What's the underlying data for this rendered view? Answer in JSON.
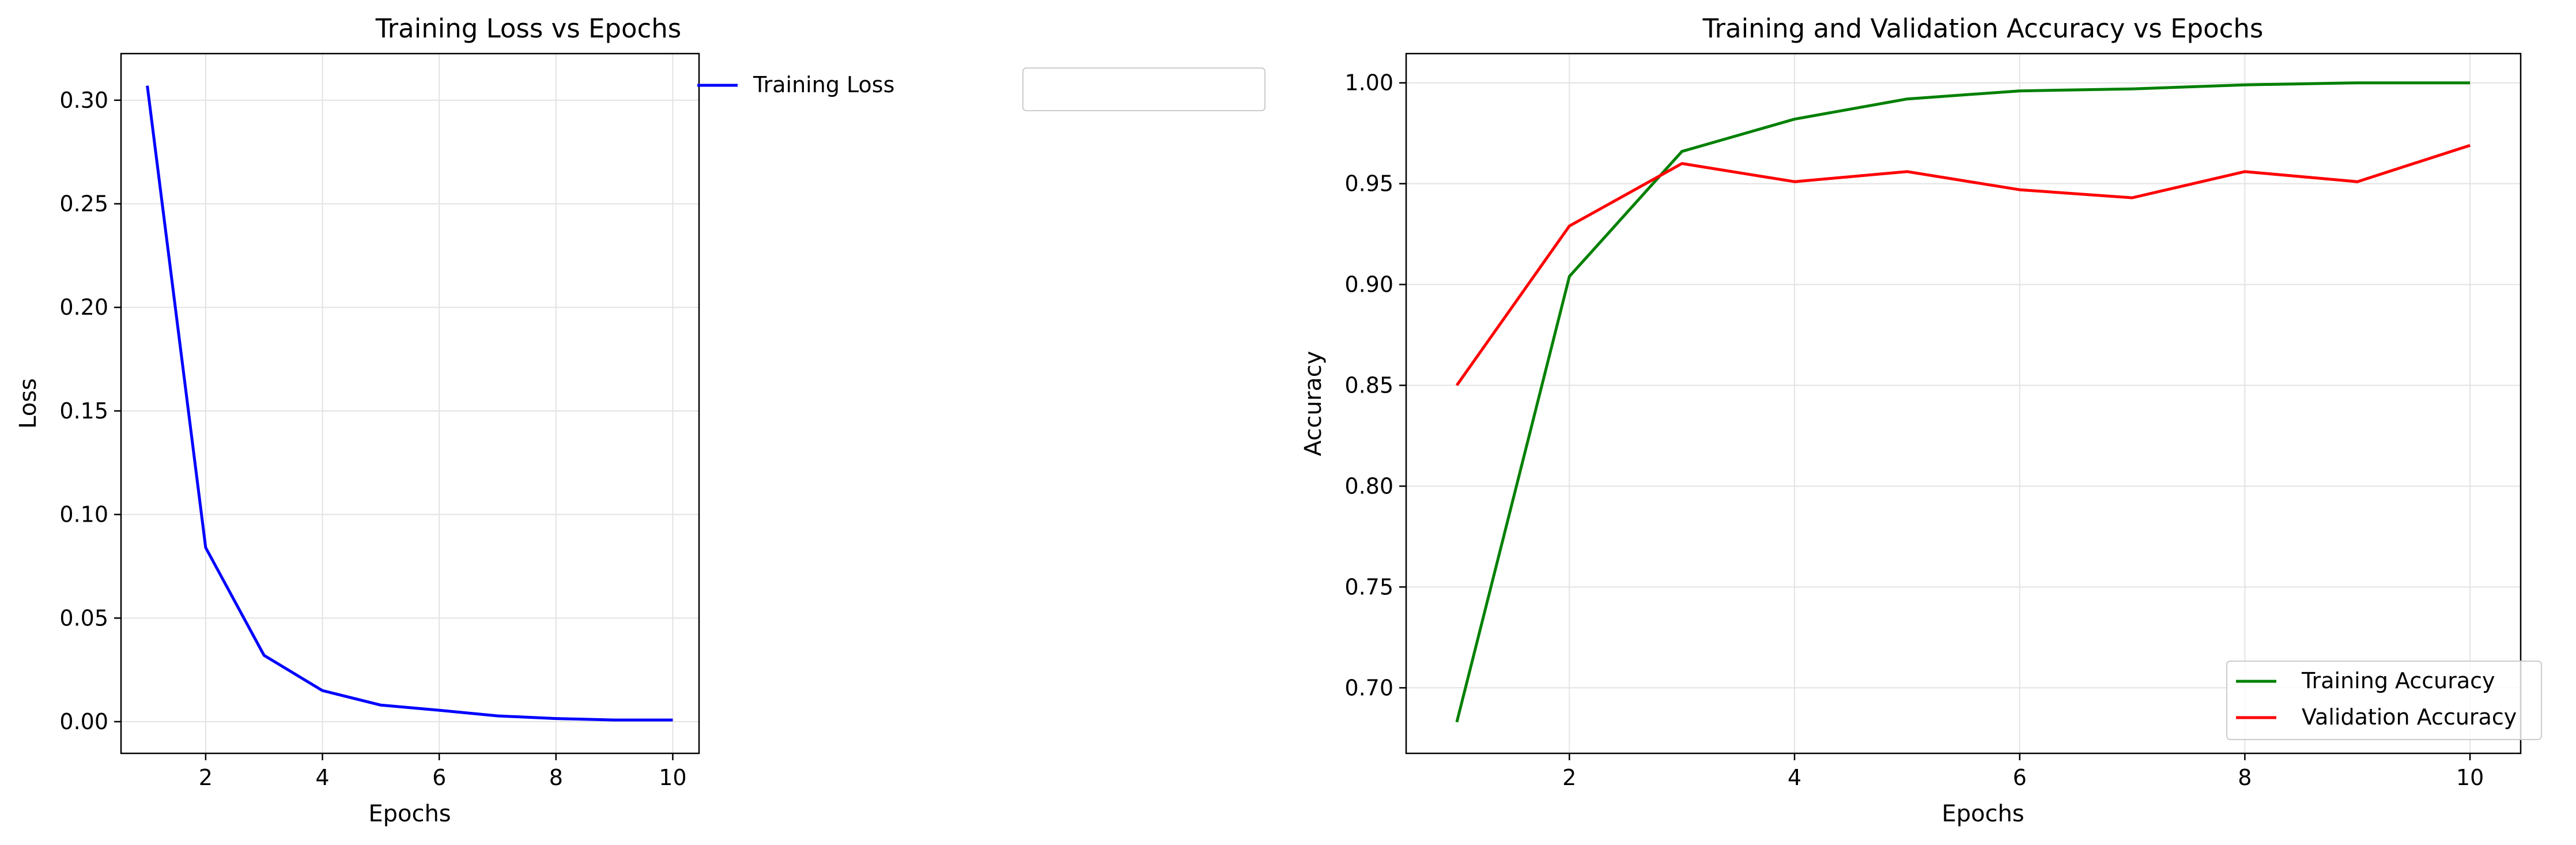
{
  "chart_data": [
    {
      "type": "line",
      "title": "Training Loss vs Epochs",
      "xlabel": "Epochs",
      "ylabel": "Loss",
      "xlim": [
        0.55,
        10.45
      ],
      "ylim": [
        -0.0153,
        0.3225
      ],
      "xticks": [
        2,
        4,
        6,
        8,
        10
      ],
      "xtick_labels": [
        "2",
        "4",
        "6",
        "8",
        "10"
      ],
      "yticks": [
        0.0,
        0.05,
        0.1,
        0.15,
        0.2,
        0.25,
        0.3
      ],
      "ytick_labels": [
        "0.00",
        "0.05",
        "0.10",
        "0.15",
        "0.20",
        "0.25",
        "0.30"
      ],
      "grid": true,
      "legend_position": "upper right",
      "x": [
        1,
        2,
        3,
        4,
        5,
        6,
        7,
        8,
        9,
        10
      ],
      "series": [
        {
          "name": "Training Loss",
          "color": "#0000ff",
          "values": [
            0.307,
            0.084,
            0.032,
            0.015,
            0.008,
            0.0055,
            0.0028,
            0.0015,
            0.0008,
            0.0008
          ]
        }
      ]
    },
    {
      "type": "line",
      "title": "Training and Validation Accuracy vs Epochs",
      "xlabel": "Epochs",
      "ylabel": "Accuracy",
      "xlim": [
        0.55,
        10.45
      ],
      "ylim": [
        0.6675,
        1.0145
      ],
      "xticks": [
        2,
        4,
        6,
        8,
        10
      ],
      "xtick_labels": [
        "2",
        "4",
        "6",
        "8",
        "10"
      ],
      "yticks": [
        0.7,
        0.75,
        0.8,
        0.85,
        0.9,
        0.95,
        1.0
      ],
      "ytick_labels": [
        "0.70",
        "0.75",
        "0.80",
        "0.85",
        "0.90",
        "0.95",
        "1.00"
      ],
      "grid": true,
      "legend_position": "lower right",
      "x": [
        1,
        2,
        3,
        4,
        5,
        6,
        7,
        8,
        9,
        10
      ],
      "series": [
        {
          "name": "Training Accuracy",
          "color": "#008000",
          "values": [
            0.683,
            0.904,
            0.966,
            0.982,
            0.992,
            0.996,
            0.997,
            0.999,
            1.0,
            1.0
          ]
        },
        {
          "name": "Validation Accuracy",
          "color": "#ff0000",
          "values": [
            0.85,
            0.929,
            0.96,
            0.951,
            0.956,
            0.947,
            0.943,
            0.956,
            0.951,
            0.969
          ]
        }
      ]
    }
  ]
}
